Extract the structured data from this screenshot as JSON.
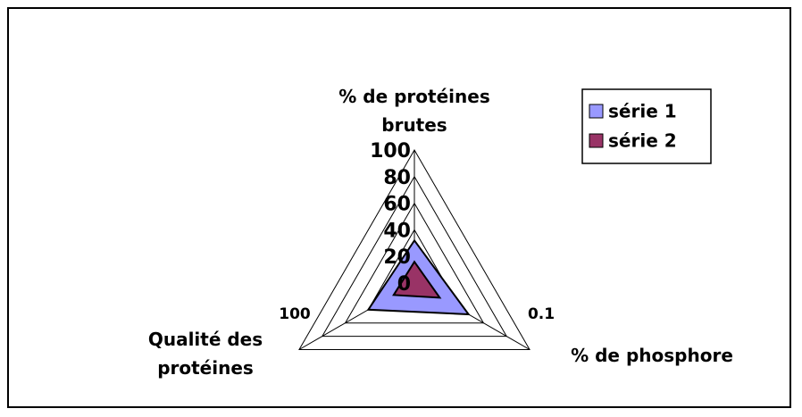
{
  "chart_data": {
    "type": "radar",
    "categories": [
      "% de protéines brutes",
      "% de phosphore",
      "Qualité des protéines"
    ],
    "series": [
      {
        "name": "série 1",
        "color": "#9999ff",
        "values": [
          32,
          47,
          40
        ]
      },
      {
        "name": "série 2",
        "color": "#993366",
        "values": [
          16,
          22,
          18
        ]
      }
    ],
    "ylim": [
      0,
      100
    ],
    "yticks": [
      0,
      20,
      40,
      60,
      80,
      100
    ],
    "annotations": [
      "100",
      "0.1"
    ],
    "grid": true,
    "legend": "top-right"
  }
}
